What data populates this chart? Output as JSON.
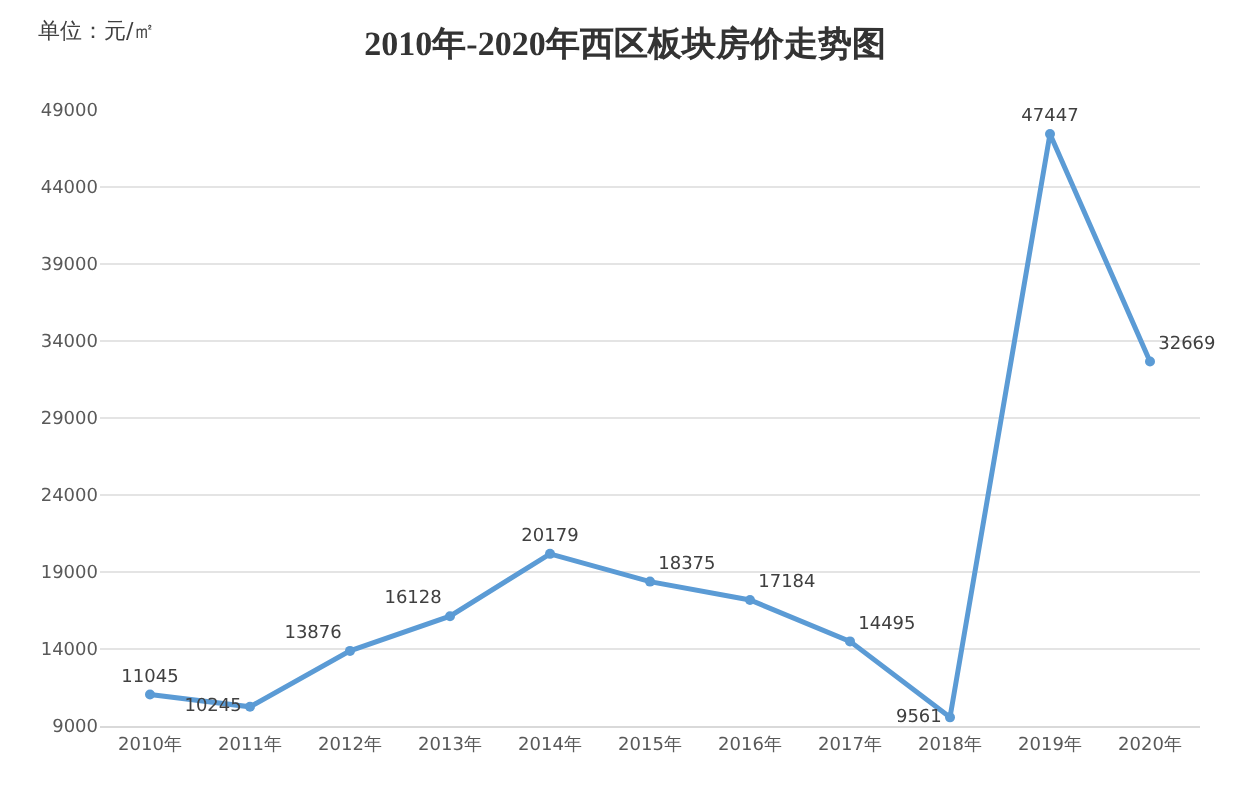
{
  "chart_data": {
    "type": "line",
    "title": "2010年-2020年西区板块房价走势图",
    "ylabel": "单位：元/㎡",
    "categories": [
      "2010年",
      "2011年",
      "2012年",
      "2013年",
      "2014年",
      "2015年",
      "2016年",
      "2017年",
      "2018年",
      "2019年",
      "2020年"
    ],
    "series": [
      {
        "color": "#5b9bd5",
        "values": [
          11045,
          10245,
          13876,
          16128,
          20179,
          18375,
          17184,
          14495,
          9561,
          47447,
          32669
        ]
      }
    ],
    "ylim": [
      9000,
      49000
    ],
    "yticks": [
      9000,
      14000,
      19000,
      24000,
      29000,
      34000,
      39000,
      44000,
      49000
    ],
    "grid": "y",
    "data_labels": true,
    "marker": "circle",
    "line_style": "solid"
  }
}
